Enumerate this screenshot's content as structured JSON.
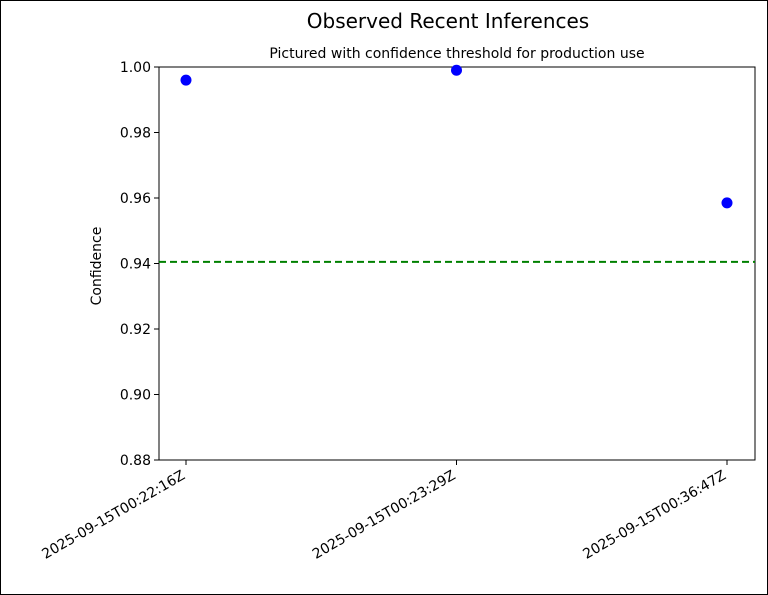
{
  "chart_data": {
    "type": "scatter",
    "title": "Observed Recent Inferences",
    "subtitle": "Pictured with confidence threshold for production use",
    "xlabel": "",
    "ylabel": "Confidence",
    "categories": [
      "2025-09-15T00:22:16Z",
      "2025-09-15T00:23:29Z",
      "2025-09-15T00:36:47Z"
    ],
    "values": [
      0.996,
      0.999,
      0.9585
    ],
    "ylim": [
      0.88,
      1.0
    ],
    "yticks": [
      "0.88",
      "0.90",
      "0.92",
      "0.94",
      "0.96",
      "0.98",
      "1.00"
    ],
    "threshold": 0.9405,
    "point_color": "#0000ff",
    "threshold_color": "#008000",
    "grid": false,
    "legend": "none"
  }
}
